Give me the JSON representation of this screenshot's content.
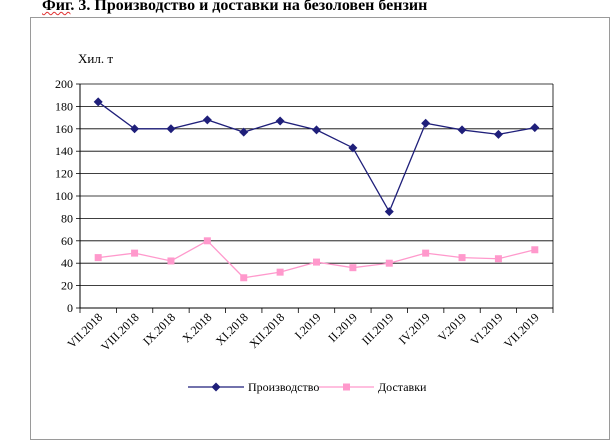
{
  "figure": {
    "title_prefix": "Фиг",
    "title_rest": ". 3. Производство и доставки на безоловен бензин"
  },
  "chart_data": {
    "type": "line",
    "ylabel": "Хил. т",
    "ylim": [
      0,
      200
    ],
    "yticks": [
      "0",
      "20",
      "40",
      "60",
      "80",
      "100",
      "120",
      "140",
      "160",
      "180",
      "200"
    ],
    "grid": true,
    "legend_position": "bottom",
    "categories": [
      "VII.2018",
      "VIII.2018",
      "IX.2018",
      "X.2018",
      "XI.2018",
      "XII.2018",
      "I.2019",
      "II.2019",
      "III.2019",
      "IV.2019",
      "V.2019",
      "VI.2019",
      "VII.2019"
    ],
    "series": [
      {
        "name": "Производство",
        "color": "#1f1f7a",
        "marker": "diamond",
        "values": [
          184,
          160,
          160,
          168,
          157,
          167,
          159,
          143,
          86,
          165,
          159,
          155,
          161
        ]
      },
      {
        "name": "Доставки",
        "color": "#ff99cc",
        "marker": "square",
        "values": [
          45,
          49,
          42,
          60,
          27,
          32,
          41,
          36,
          40,
          49,
          45,
          44,
          52
        ]
      }
    ]
  }
}
